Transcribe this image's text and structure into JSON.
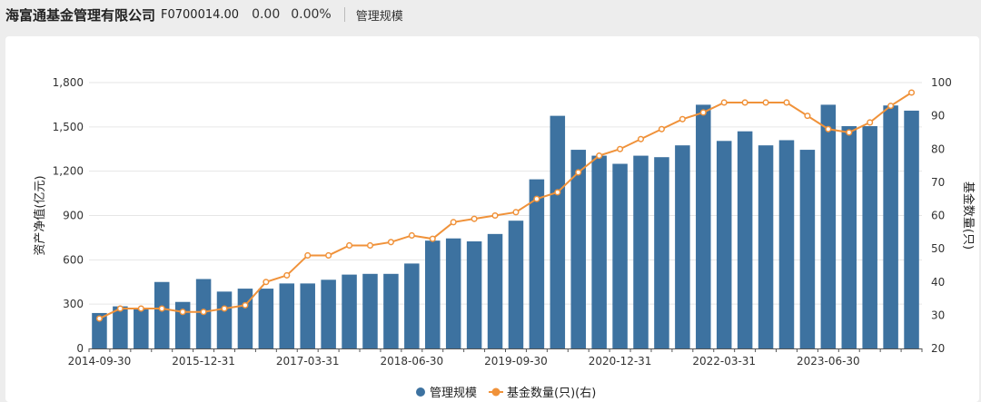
{
  "header": {
    "company": "海富通基金管理有限公司",
    "code": "F0700014.00",
    "change_value": "0.00",
    "change_pct": "0.00%",
    "tab": "管理规模"
  },
  "colors": {
    "bar": "#3d72a0",
    "line": "#f0923a",
    "grid": "#e6e6e6",
    "axis": "#555555"
  },
  "chart_data": {
    "type": "bar",
    "grid": true,
    "legend_position": "bottom-center",
    "xlabel": "",
    "ylabel_left": "资产净值(亿元)",
    "ylabel_right": "基金数量(只)",
    "y_left": {
      "min": 0,
      "max": 1800,
      "ticks": [
        0,
        300,
        600,
        900,
        1200,
        1500,
        1800
      ],
      "tick_labels": [
        "0",
        "300",
        "600",
        "900",
        "1,200",
        "1,500",
        "1,800"
      ]
    },
    "y_right": {
      "min": 20,
      "max": 100,
      "ticks": [
        20,
        30,
        40,
        50,
        60,
        70,
        80,
        90,
        100
      ],
      "tick_labels": [
        "20",
        "30",
        "40",
        "50",
        "60",
        "70",
        "80",
        "90",
        "100"
      ]
    },
    "x_tick_labels": [
      {
        "index": 0,
        "label": "2014-09-30"
      },
      {
        "index": 5,
        "label": "2015-12-31"
      },
      {
        "index": 10,
        "label": "2017-03-31"
      },
      {
        "index": 15,
        "label": "2018-06-30"
      },
      {
        "index": 20,
        "label": "2019-09-30"
      },
      {
        "index": 25,
        "label": "2020-12-31"
      },
      {
        "index": 30,
        "label": "2022-03-31"
      },
      {
        "index": 35,
        "label": "2023-06-30"
      }
    ],
    "categories": [
      "2014-09-30",
      "2014-12-31",
      "2015-03-31",
      "2015-06-30",
      "2015-09-30",
      "2015-12-31",
      "2016-03-31",
      "2016-06-30",
      "2016-09-30",
      "2016-12-31",
      "2017-03-31",
      "2017-06-30",
      "2017-09-30",
      "2017-12-31",
      "2018-03-31",
      "2018-06-30",
      "2018-09-30",
      "2018-12-31",
      "2019-03-31",
      "2019-06-30",
      "2019-09-30",
      "2019-12-31",
      "2020-03-31",
      "2020-06-30",
      "2020-09-30",
      "2020-12-31",
      "2021-03-31",
      "2021-06-30",
      "2021-09-30",
      "2021-12-31",
      "2022-03-31",
      "2022-06-30",
      "2022-09-30",
      "2022-12-31",
      "2023-03-31",
      "2023-06-30",
      "2023-09-30",
      "2023-12-31",
      "2024-03-31",
      "2024-06-30"
    ],
    "series": [
      {
        "name": "管理规模",
        "kind": "bar",
        "axis": "left",
        "values": [
          240,
          285,
          270,
          450,
          315,
          470,
          385,
          405,
          405,
          440,
          440,
          465,
          500,
          505,
          505,
          575,
          730,
          745,
          725,
          775,
          865,
          1145,
          1575,
          1345,
          1305,
          1250,
          1305,
          1295,
          1375,
          1650,
          1405,
          1470,
          1375,
          1410,
          1345,
          1650,
          1505,
          1505,
          1645,
          1610
        ]
      },
      {
        "name": "基金数量(只)(右)",
        "kind": "line",
        "axis": "right",
        "values": [
          29,
          32,
          32,
          32,
          31,
          31,
          32,
          33,
          40,
          42,
          48,
          48,
          51,
          51,
          52,
          54,
          53,
          58,
          59,
          60,
          61,
          65,
          67,
          73,
          78,
          80,
          83,
          86,
          89,
          91,
          94,
          94,
          94,
          94,
          90,
          86,
          85,
          88,
          93,
          97
        ]
      }
    ]
  }
}
